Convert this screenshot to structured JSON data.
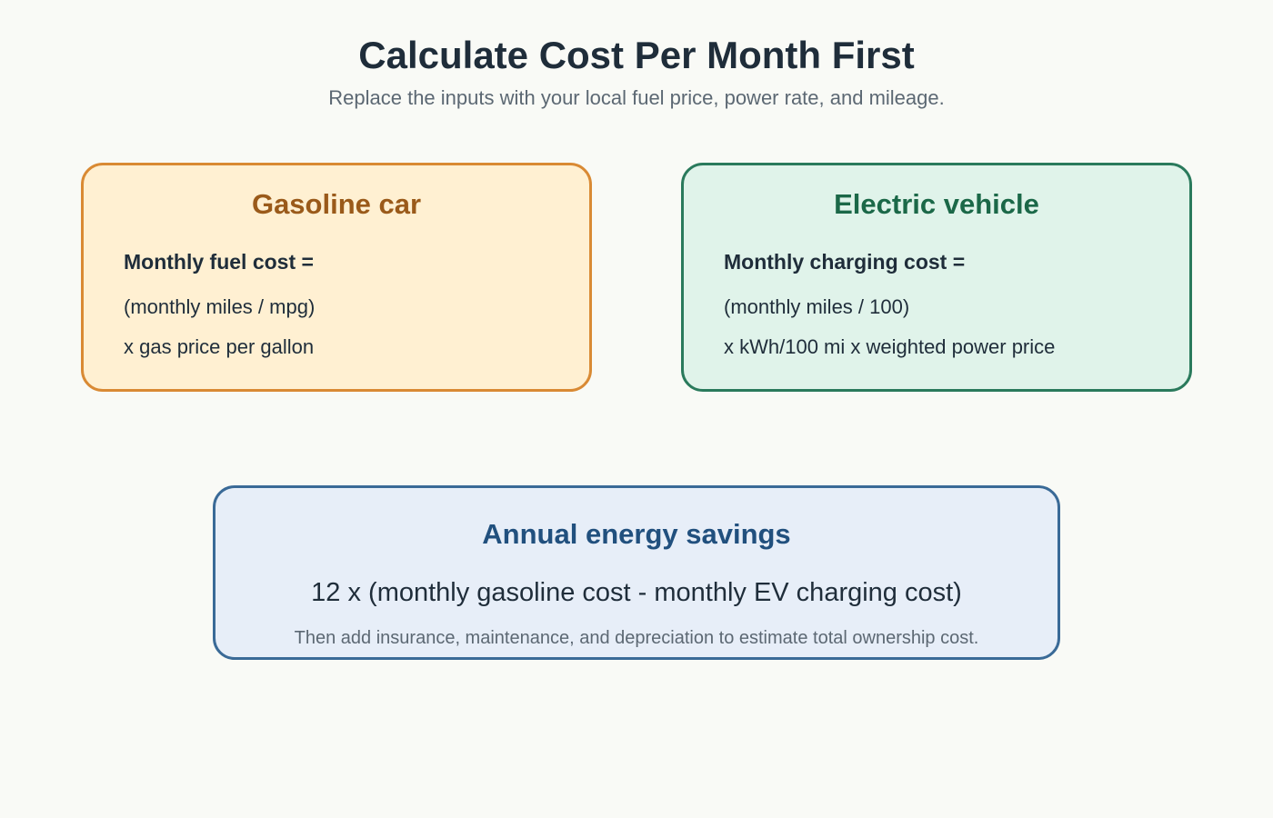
{
  "header": {
    "title": "Calculate Cost Per Month First",
    "subtitle": "Replace the inputs with your local fuel price, power rate, and mileage."
  },
  "gasoline": {
    "heading": "Gasoline car",
    "formula_label": "Monthly fuel cost =",
    "line1": "(monthly miles / mpg)",
    "line2": "x gas price per gallon"
  },
  "electric": {
    "heading": "Electric vehicle",
    "formula_label": "Monthly charging cost =",
    "line1": "(monthly miles / 100)",
    "line2": "x kWh/100 mi x weighted power price"
  },
  "savings": {
    "heading": "Annual energy savings",
    "formula": "12 x (monthly gasoline cost - monthly EV charging cost)",
    "note": "Then add insurance, maintenance, and depreciation to estimate total ownership cost."
  },
  "colors": {
    "background": "#f9faf6",
    "gas_fill": "#fff0d2",
    "gas_border": "#d98a34",
    "ev_fill": "#e0f3ea",
    "ev_border": "#2a7a5c",
    "savings_fill": "#e7eef8",
    "savings_border": "#3a6a97"
  }
}
